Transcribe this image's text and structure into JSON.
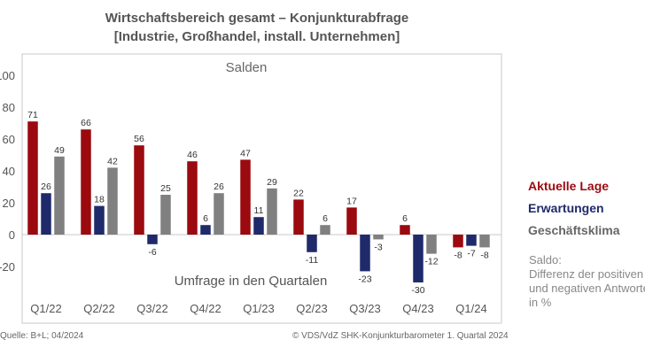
{
  "chart_data": {
    "type": "bar",
    "title_line1": "Wirtschaftsbereich gesamt – Konjunkturabfrage",
    "title_line2": "[Industrie, Großhandel, install. Unternehmen]",
    "plot_title": "Salden",
    "xlabel": "Umfrage in den Quartalen",
    "categories": [
      "Q1/22",
      "Q2/22",
      "Q3/22",
      "Q4/22",
      "Q1/23",
      "Q2/23",
      "Q3/23",
      "Q4/23",
      "Q1/24"
    ],
    "series": [
      {
        "name": "Aktuelle Lage",
        "color": "#9b0a0f",
        "values": [
          71,
          66,
          56,
          46,
          47,
          22,
          17,
          6,
          -8
        ]
      },
      {
        "name": "Erwartungen",
        "color": "#1f2a6b",
        "values": [
          26,
          18,
          -6,
          6,
          11,
          -11,
          -23,
          -30,
          -7
        ]
      },
      {
        "name": "Geschäftsklima",
        "color": "#808080",
        "values": [
          49,
          42,
          25,
          26,
          29,
          6,
          -3,
          -12,
          -8
        ]
      }
    ],
    "ylim": [
      -40,
      100
    ],
    "yticks": [
      -20,
      0,
      20,
      40,
      60,
      80,
      100
    ],
    "ytick_labels": [
      "-20",
      "0",
      "20",
      "40",
      "60",
      "80",
      "100"
    ],
    "legend_position": "right"
  },
  "note": {
    "line1": "Saldo:",
    "line2": "Differenz der positiven",
    "line3": "und negativen Antworten",
    "line4": "in %"
  },
  "footer": {
    "source": "Quelle: B+L; 04/2024",
    "copyright": "© VDS/VdZ SHK-Konjunkturbarometer 1. Quartal 2024"
  }
}
